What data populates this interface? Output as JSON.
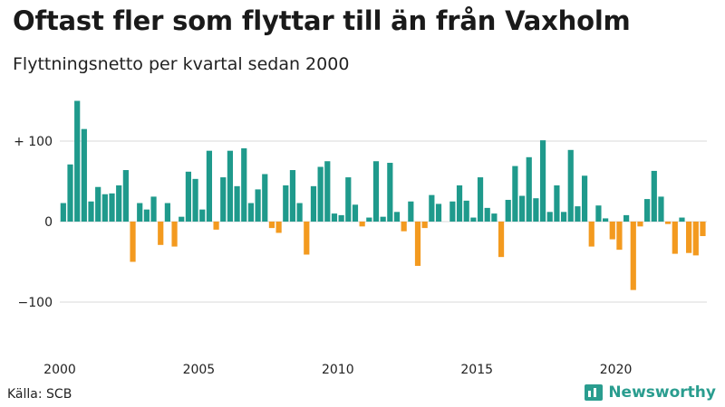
{
  "title": "Oftast fler som flyttar till än från Vaxholm",
  "subtitle": "Flyttningsnetto per kvartal sedan 2000",
  "source": "Källa: SCB",
  "brand": {
    "name": "Newsworthy",
    "icon": "bar-chart-icon",
    "color": "#2a9d8f"
  },
  "colors": {
    "positive": "#1f9a8c",
    "negative": "#f39a1f",
    "grid": "#d9d9d9"
  },
  "chart_data": {
    "type": "bar",
    "title": "Oftast fler som flyttar till än från Vaxholm",
    "subtitle": "Flyttningsnetto per kvartal sedan 2000",
    "x_start": "2000Q1",
    "x_ticks": [
      "2000",
      "2005",
      "2010",
      "2015",
      "2020"
    ],
    "y_ticks": [
      {
        "value": 100,
        "label": "+ 100"
      },
      {
        "value": 0,
        "label": "0"
      },
      {
        "value": -100,
        "label": "−100"
      }
    ],
    "ylim": [
      -165,
      150
    ],
    "grid": true,
    "values": [
      23,
      71,
      150,
      115,
      25,
      43,
      34,
      35,
      45,
      64,
      -50,
      23,
      15,
      31,
      -29,
      23,
      -31,
      6,
      62,
      53,
      15,
      88,
      -10,
      55,
      88,
      44,
      91,
      23,
      40,
      59,
      -8,
      -14,
      45,
      64,
      23,
      -41,
      44,
      68,
      75,
      10,
      8,
      55,
      21,
      -6,
      5,
      75,
      6,
      73,
      12,
      -12,
      25,
      -55,
      -8,
      33,
      22,
      0,
      25,
      45,
      26,
      5,
      55,
      17,
      10,
      -44,
      27,
      69,
      32,
      80,
      29,
      101,
      12,
      45,
      12,
      89,
      19,
      57,
      -31,
      20,
      4,
      -22,
      -35,
      8,
      -85,
      -6,
      28,
      63,
      31,
      -3,
      -40,
      5,
      -39,
      -42,
      -18
    ]
  }
}
